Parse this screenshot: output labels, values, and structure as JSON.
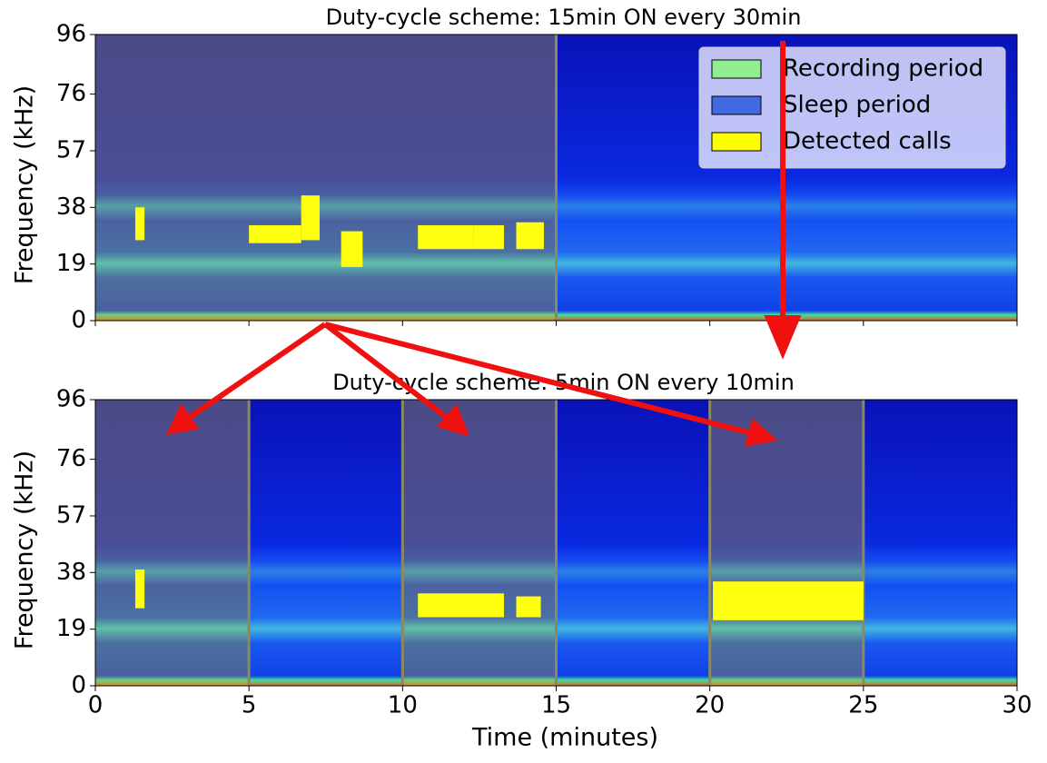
{
  "chart_data": [
    {
      "type": "spectrogram",
      "title": "Duty-cycle scheme: 15min ON every 30min",
      "ylabel": "Frequency (kHz)",
      "xlim": [
        0,
        30
      ],
      "ylim": [
        0,
        96
      ],
      "yticks": [
        0,
        19,
        38,
        57,
        76,
        96
      ],
      "recording_periods": [
        [
          0,
          15
        ]
      ],
      "sleep_periods": [
        [
          15,
          30
        ]
      ],
      "detected_calls": [
        {
          "x": [
            1.3,
            1.6
          ],
          "y": [
            27,
            38
          ]
        },
        {
          "x": [
            5,
            6.7
          ],
          "y": [
            26,
            32
          ]
        },
        {
          "x": [
            6.7,
            7.3
          ],
          "y": [
            27,
            42
          ]
        },
        {
          "x": [
            8,
            8.7
          ],
          "y": [
            18,
            30
          ]
        },
        {
          "x": [
            10.5,
            12.3
          ],
          "y": [
            24,
            32
          ]
        },
        {
          "x": [
            12.3,
            13.3
          ],
          "y": [
            24,
            32
          ]
        },
        {
          "x": [
            13.7,
            14.6
          ],
          "y": [
            24,
            33
          ]
        }
      ],
      "legend": "upper right",
      "series": [
        {
          "name": "Recording period",
          "color": "#90ee90"
        },
        {
          "name": "Sleep period",
          "color": "#4169e1"
        },
        {
          "name": "Detected calls",
          "color": "#ffff00"
        }
      ]
    },
    {
      "type": "spectrogram",
      "title": "Duty-cycle scheme: 5min ON every 10min",
      "ylabel": "Frequency (kHz)",
      "xlabel": "Time (minutes)",
      "xlim": [
        0,
        30
      ],
      "ylim": [
        0,
        96
      ],
      "xticks": [
        0,
        5,
        10,
        15,
        20,
        25,
        30
      ],
      "yticks": [
        0,
        19,
        38,
        57,
        76,
        96
      ],
      "recording_periods": [
        [
          0,
          5
        ],
        [
          10,
          15
        ],
        [
          20,
          25
        ]
      ],
      "sleep_periods": [
        [
          5,
          10
        ],
        [
          15,
          20
        ],
        [
          25,
          30
        ]
      ],
      "detected_calls": [
        {
          "x": [
            1.3,
            1.6
          ],
          "y": [
            26,
            39
          ]
        },
        {
          "x": [
            10.5,
            13.3
          ],
          "y": [
            23,
            31
          ]
        },
        {
          "x": [
            13.7,
            14.5
          ],
          "y": [
            23,
            30
          ]
        },
        {
          "x": [
            20.1,
            25
          ],
          "y": [
            22,
            35
          ]
        }
      ]
    }
  ]
}
